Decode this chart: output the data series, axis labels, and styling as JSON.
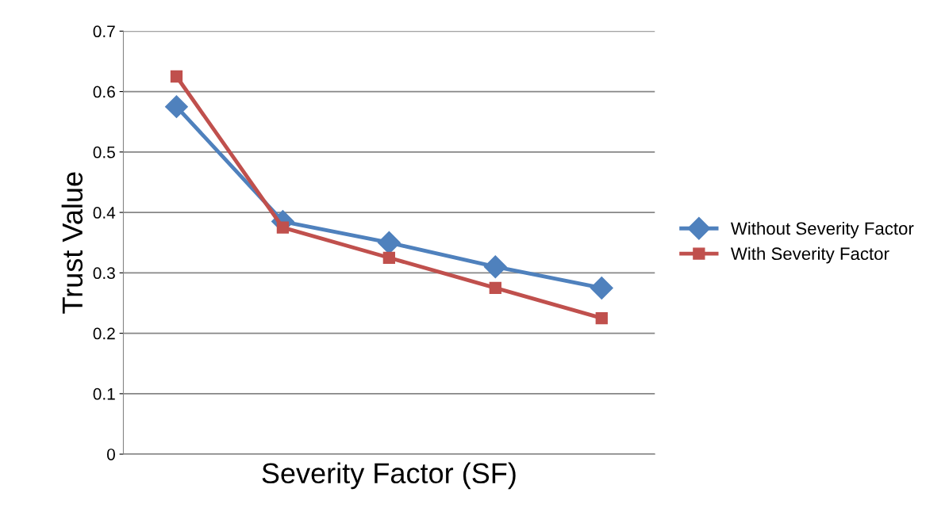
{
  "chart_data": {
    "type": "line",
    "xlabel": "Severity Factor (SF)",
    "ylabel": "Trust Value",
    "categories": [
      null,
      null,
      null,
      null,
      null
    ],
    "series": [
      {
        "name": "Without Severity Factor",
        "color": "#4f81bd",
        "marker": "diamond",
        "values": [
          0.575,
          0.385,
          0.35,
          0.31,
          0.275
        ]
      },
      {
        "name": "With Severity Factor",
        "color": "#c0504d",
        "marker": "square",
        "values": [
          0.625,
          0.375,
          0.325,
          0.275,
          0.225
        ]
      }
    ],
    "ylim": [
      0,
      0.7
    ],
    "yticks": [
      0,
      0.1,
      0.2,
      0.3,
      0.4,
      0.5,
      0.6,
      0.7
    ],
    "grid": "y",
    "legend": "right"
  }
}
